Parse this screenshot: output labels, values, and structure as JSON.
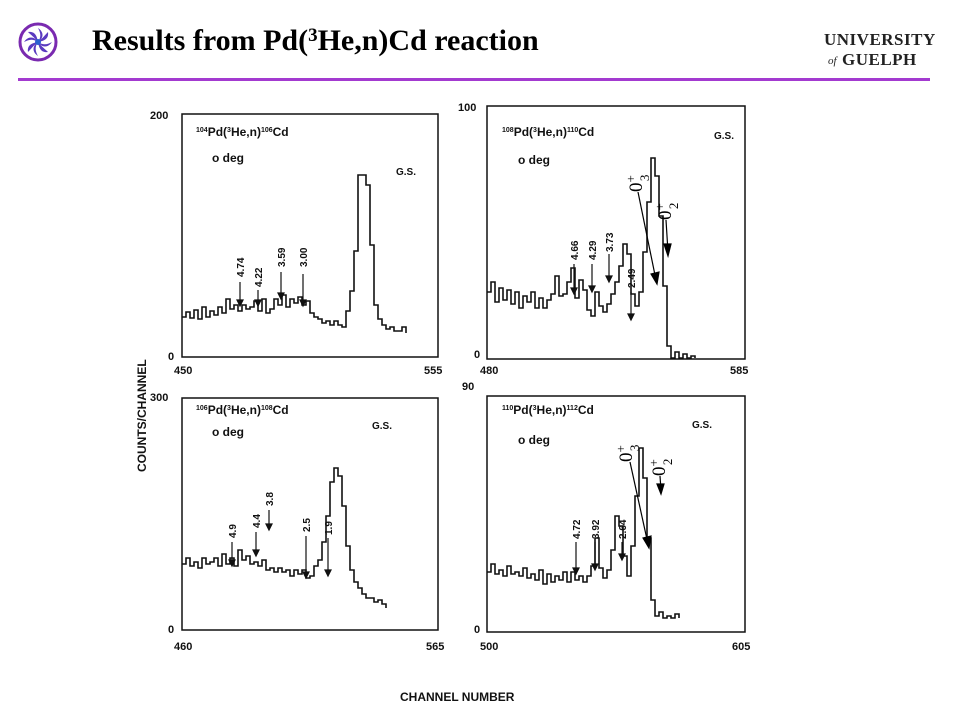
{
  "header": {
    "title_prefix": "Results from Pd(",
    "title_sup": "3",
    "title_suffix": "He,n)Cd reaction",
    "institution_logo_text": [
      "UNIVERSITY",
      "of",
      "GUELPH"
    ],
    "accent_color": "#a33ad0"
  },
  "figure": {
    "ylabel": "COUNTS/CHANNEL",
    "xlabel": "CHANNEL NUMBER",
    "panels": [
      {
        "reaction_sup_a": "104",
        "reaction_a": "Pd(",
        "reaction_sup_b": "3",
        "reaction_b": "He,n)",
        "reaction_sup_c": "106",
        "reaction_c": "Cd",
        "angle": "o deg",
        "xlim": [
          "450",
          "555"
        ],
        "ylim": [
          "0",
          "200"
        ],
        "peak_labels": [
          "4.74",
          "4.22",
          "3.59",
          "3.00",
          "G.S."
        ],
        "annotations": []
      },
      {
        "reaction_sup_a": "108",
        "reaction_a": "Pd(",
        "reaction_sup_b": "3",
        "reaction_b": "He,n)",
        "reaction_sup_c": "110",
        "reaction_c": "Cd",
        "angle": "o deg",
        "xlim": [
          "480",
          "585"
        ],
        "ylim": [
          "0",
          "100"
        ],
        "peak_labels": [
          "4.66",
          "4.29",
          "3.73",
          "2.49",
          "G.S."
        ],
        "annotations": [
          {
            "base": "0",
            "sup": "+",
            "sub": "3"
          },
          {
            "base": "0",
            "sup": "+",
            "sub": "2"
          }
        ]
      },
      {
        "reaction_sup_a": "106",
        "reaction_a": "Pd(",
        "reaction_sup_b": "3",
        "reaction_b": "He,n)",
        "reaction_sup_c": "108",
        "reaction_c": "Cd",
        "angle": "o deg",
        "xlim": [
          "460",
          "565"
        ],
        "ylim": [
          "0",
          "300"
        ],
        "peak_labels": [
          "4.9",
          "4.4",
          "3.8",
          "2.5",
          "1.9",
          "G.S."
        ],
        "annotations": []
      },
      {
        "reaction_sup_a": "110",
        "reaction_a": "Pd(",
        "reaction_sup_b": "3",
        "reaction_b": "He,n)",
        "reaction_sup_c": "112",
        "reaction_c": "Cd",
        "angle": "o deg",
        "xlim": [
          "500",
          "605"
        ],
        "ylim": [
          "0",
          "90"
        ],
        "peak_labels": [
          "4.72",
          "3.92",
          "2.64",
          "G.S."
        ],
        "annotations": [
          {
            "base": "0",
            "sup": "+",
            "sub": "3"
          },
          {
            "base": "0",
            "sup": "+",
            "sub": "2"
          }
        ]
      }
    ]
  }
}
